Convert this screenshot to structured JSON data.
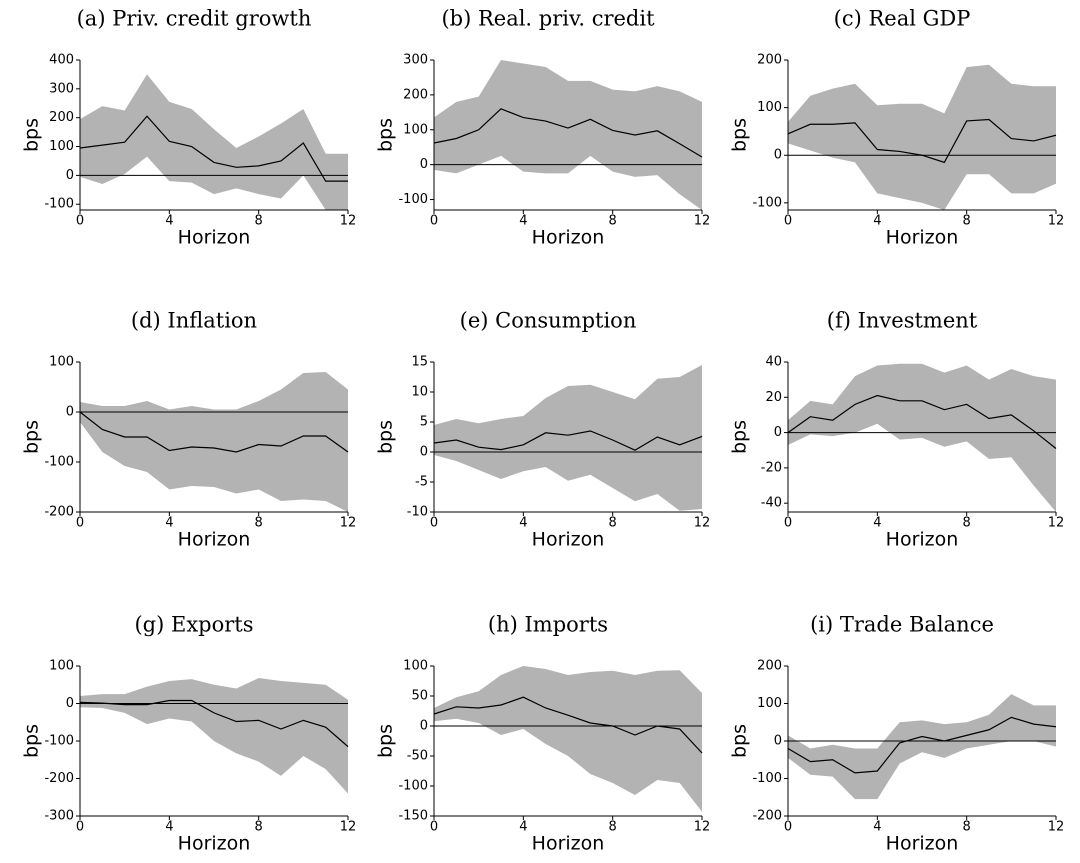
{
  "chart_data": [
    {
      "type": "line",
      "title": "(a) Priv. credit growth",
      "xlabel": "Horizon",
      "ylabel": "bps",
      "x": [
        0,
        1,
        2,
        3,
        4,
        5,
        6,
        7,
        8,
        9,
        10,
        11,
        12
      ],
      "values": [
        95,
        105,
        115,
        205,
        118,
        100,
        45,
        28,
        33,
        50,
        112,
        -20,
        -20
      ],
      "band_upper": [
        195,
        240,
        225,
        350,
        255,
        230,
        160,
        95,
        135,
        180,
        230,
        75,
        75
      ],
      "band_lower": [
        -5,
        -30,
        5,
        65,
        -20,
        -25,
        -65,
        -45,
        -65,
        -80,
        0,
        -120,
        -120
      ],
      "xlim": [
        0,
        12
      ],
      "xticks": [
        0,
        4,
        8,
        12
      ],
      "ylim": [
        -120,
        400
      ],
      "yticks": [
        -100,
        0,
        100,
        200,
        300,
        400
      ],
      "reference_line": 0,
      "color": "#000000",
      "band_color": "#b3b3b3"
    },
    {
      "type": "line",
      "title": "(b) Real. priv. credit",
      "xlabel": "Horizon",
      "ylabel": "bps",
      "x": [
        0,
        1,
        2,
        3,
        4,
        5,
        6,
        7,
        8,
        9,
        10,
        11,
        12
      ],
      "values": [
        62,
        75,
        100,
        160,
        135,
        125,
        105,
        130,
        98,
        85,
        97,
        60,
        22
      ],
      "band_upper": [
        135,
        180,
        195,
        300,
        290,
        280,
        240,
        240,
        215,
        210,
        225,
        210,
        180
      ],
      "band_lower": [
        -15,
        -25,
        0,
        25,
        -20,
        -25,
        -25,
        25,
        -20,
        -35,
        -30,
        -85,
        -130
      ],
      "xlim": [
        0,
        12
      ],
      "xticks": [
        0,
        4,
        8,
        12
      ],
      "ylim": [
        -130,
        300
      ],
      "yticks": [
        -100,
        0,
        100,
        200,
        300
      ],
      "reference_line": 0,
      "color": "#000000",
      "band_color": "#b3b3b3"
    },
    {
      "type": "line",
      "title": "(c) Real GDP",
      "xlabel": "Horizon",
      "ylabel": "bps",
      "x": [
        0,
        1,
        2,
        3,
        4,
        5,
        6,
        7,
        8,
        9,
        10,
        11,
        12
      ],
      "values": [
        45,
        65,
        65,
        68,
        12,
        8,
        0,
        -15,
        72,
        75,
        35,
        30,
        42
      ],
      "band_upper": [
        70,
        125,
        140,
        150,
        105,
        108,
        108,
        88,
        185,
        190,
        150,
        145,
        145
      ],
      "band_lower": [
        25,
        10,
        -5,
        -15,
        -80,
        -90,
        -100,
        -115,
        -40,
        -40,
        -80,
        -80,
        -60
      ],
      "xlim": [
        0,
        12
      ],
      "xticks": [
        0,
        4,
        8,
        12
      ],
      "ylim": [
        -115,
        200
      ],
      "yticks": [
        -100,
        0,
        100,
        200
      ],
      "reference_line": 0,
      "color": "#000000",
      "band_color": "#b3b3b3"
    },
    {
      "type": "line",
      "title": "(d) Inflation",
      "xlabel": "Horizon",
      "ylabel": "bps",
      "x": [
        0,
        1,
        2,
        3,
        4,
        5,
        6,
        7,
        8,
        9,
        10,
        11,
        12
      ],
      "values": [
        0,
        -35,
        -50,
        -50,
        -77,
        -70,
        -72,
        -80,
        -65,
        -68,
        -48,
        -48,
        -80
      ],
      "band_upper": [
        20,
        12,
        12,
        22,
        5,
        12,
        5,
        5,
        22,
        45,
        78,
        80,
        45
      ],
      "band_lower": [
        -20,
        -80,
        -108,
        -120,
        -155,
        -148,
        -150,
        -163,
        -155,
        -178,
        -175,
        -178,
        -200
      ],
      "xlim": [
        0,
        12
      ],
      "xticks": [
        0,
        4,
        8,
        12
      ],
      "ylim": [
        -200,
        100
      ],
      "yticks": [
        -200,
        -100,
        0,
        100
      ],
      "reference_line": 0,
      "color": "#000000",
      "band_color": "#b3b3b3"
    },
    {
      "type": "line",
      "title": "(e) Consumption",
      "xlabel": "Horizon",
      "ylabel": "bps",
      "x": [
        0,
        1,
        2,
        3,
        4,
        5,
        6,
        7,
        8,
        9,
        10,
        11,
        12
      ],
      "values": [
        1.5,
        2,
        0.8,
        0.4,
        1.2,
        3.2,
        2.8,
        3.5,
        2,
        0.3,
        2.5,
        1.2,
        2.6
      ],
      "band_upper": [
        4.5,
        5.5,
        4.8,
        5.5,
        6,
        9,
        11,
        11.2,
        10,
        8.8,
        12.2,
        12.5,
        14.5
      ],
      "band_lower": [
        -0.5,
        -1.5,
        -3,
        -4.5,
        -3.2,
        -2.5,
        -4.8,
        -3.8,
        -6,
        -8.2,
        -7,
        -9.8,
        -9.5
      ],
      "xlim": [
        0,
        12
      ],
      "xticks": [
        0,
        4,
        8,
        12
      ],
      "ylim": [
        -10,
        15
      ],
      "yticks": [
        -10,
        -5,
        0,
        5,
        10,
        15
      ],
      "reference_line": 0,
      "color": "#000000",
      "band_color": "#b3b3b3"
    },
    {
      "type": "line",
      "title": "(f) Investment",
      "xlabel": "Horizon",
      "ylabel": "bps",
      "x": [
        0,
        1,
        2,
        3,
        4,
        5,
        6,
        7,
        8,
        9,
        10,
        11,
        12
      ],
      "values": [
        0,
        9,
        7,
        16,
        21,
        18,
        18,
        13,
        16,
        8,
        10,
        1,
        -9
      ],
      "band_upper": [
        7,
        18,
        16,
        32,
        38,
        39,
        39,
        34,
        38,
        30,
        36,
        32,
        30
      ],
      "band_lower": [
        -7,
        -1,
        -2,
        0,
        5,
        -4,
        -3,
        -8,
        -5,
        -15,
        -14,
        -30,
        -45
      ],
      "xlim": [
        0,
        12
      ],
      "xticks": [
        0,
        4,
        8,
        12
      ],
      "ylim": [
        -45,
        40
      ],
      "yticks": [
        -40,
        -20,
        0,
        20,
        40
      ],
      "reference_line": 0,
      "color": "#000000",
      "band_color": "#b3b3b3"
    },
    {
      "type": "line",
      "title": "(g) Exports",
      "xlabel": "Horizon",
      "ylabel": "bps",
      "x": [
        0,
        1,
        2,
        3,
        4,
        5,
        6,
        7,
        8,
        9,
        10,
        11,
        12
      ],
      "values": [
        3,
        1,
        -3,
        -3,
        8,
        8,
        -25,
        -48,
        -45,
        -68,
        -45,
        -63,
        -115
      ],
      "band_upper": [
        20,
        25,
        25,
        45,
        60,
        65,
        50,
        40,
        68,
        60,
        55,
        50,
        10
      ],
      "band_lower": [
        -10,
        -12,
        -25,
        -55,
        -40,
        -48,
        -100,
        -133,
        -155,
        -193,
        -140,
        -175,
        -240
      ],
      "xlim": [
        0,
        12
      ],
      "xticks": [
        0,
        4,
        8,
        12
      ],
      "ylim": [
        -300,
        100
      ],
      "yticks": [
        -300,
        -200,
        -100,
        0,
        100
      ],
      "reference_line": 0,
      "color": "#000000",
      "band_color": "#b3b3b3"
    },
    {
      "type": "line",
      "title": "(h) Imports",
      "xlabel": "Horizon",
      "ylabel": "bps",
      "x": [
        0,
        1,
        2,
        3,
        4,
        5,
        6,
        7,
        8,
        9,
        10,
        11,
        12
      ],
      "values": [
        20,
        32,
        30,
        35,
        48,
        30,
        18,
        5,
        0,
        -15,
        0,
        -5,
        -45
      ],
      "band_upper": [
        30,
        48,
        58,
        85,
        100,
        95,
        85,
        90,
        92,
        85,
        92,
        93,
        55
      ],
      "band_lower": [
        8,
        12,
        5,
        -15,
        -5,
        -30,
        -50,
        -80,
        -95,
        -115,
        -90,
        -95,
        -143
      ],
      "xlim": [
        0,
        12
      ],
      "xticks": [
        0,
        4,
        8,
        12
      ],
      "ylim": [
        -150,
        100
      ],
      "yticks": [
        -150,
        -100,
        -50,
        0,
        50,
        100
      ],
      "reference_line": 0,
      "color": "#000000",
      "band_color": "#b3b3b3"
    },
    {
      "type": "line",
      "title": "(i) Trade Balance",
      "xlabel": "Horizon",
      "ylabel": "bps",
      "x": [
        0,
        1,
        2,
        3,
        4,
        5,
        6,
        7,
        8,
        9,
        10,
        11,
        12
      ],
      "values": [
        -20,
        -55,
        -50,
        -85,
        -80,
        -5,
        12,
        0,
        15,
        30,
        63,
        45,
        38
      ],
      "band_upper": [
        15,
        -20,
        -10,
        -20,
        -20,
        50,
        55,
        45,
        50,
        70,
        125,
        95,
        95
      ],
      "band_lower": [
        -45,
        -90,
        -95,
        -155,
        -155,
        -60,
        -30,
        -45,
        -20,
        -10,
        0,
        0,
        -15
      ],
      "xlim": [
        0,
        12
      ],
      "xticks": [
        0,
        4,
        8,
        12
      ],
      "ylim": [
        -200,
        200
      ],
      "yticks": [
        -200,
        -100,
        0,
        100,
        200
      ],
      "reference_line": 0,
      "color": "#000000",
      "band_color": "#b3b3b3"
    }
  ]
}
